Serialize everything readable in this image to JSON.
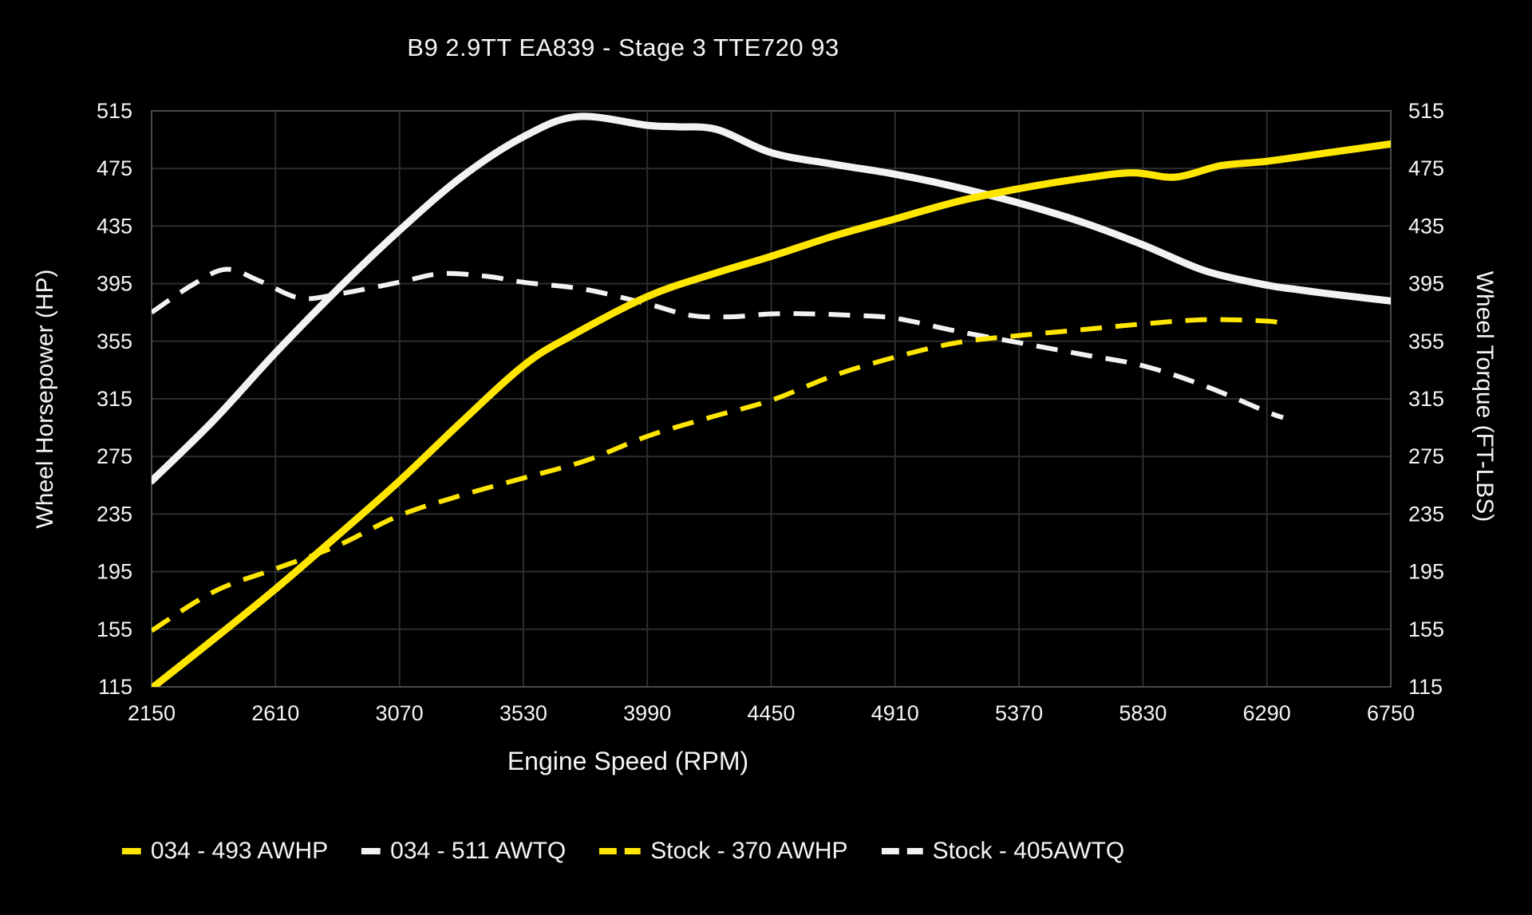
{
  "page": {
    "background": "#000000",
    "text_color": "#f5f5f5",
    "grid_color": "#2d2d2d",
    "border_color": "#4a4a4a"
  },
  "chart_data": {
    "type": "line",
    "title": "B9 2.9TT EA839 - Stage 3 TTE720 93",
    "xlabel": "Engine Speed (RPM)",
    "ylabel_left": "Wheel Horsepower (HP)",
    "ylabel_right": "Wheel Torque (FT-LBS)",
    "xlim": [
      2150,
      6750
    ],
    "ylim": [
      115,
      515
    ],
    "xticks": [
      2150,
      2610,
      3070,
      3530,
      3990,
      4450,
      4910,
      5370,
      5830,
      6290,
      6750
    ],
    "yticks": [
      115,
      155,
      195,
      235,
      275,
      315,
      355,
      395,
      435,
      475,
      515
    ],
    "grid": true,
    "legend_position": "bottom",
    "series": [
      {
        "name": "034 - 511 AWTQ",
        "color": "#f2f2f2",
        "style": "solid",
        "width": 9,
        "points": [
          [
            2150,
            258
          ],
          [
            2380,
            300
          ],
          [
            2610,
            347
          ],
          [
            2840,
            391
          ],
          [
            3070,
            432
          ],
          [
            3300,
            469
          ],
          [
            3530,
            497
          ],
          [
            3730,
            511
          ],
          [
            3990,
            505
          ],
          [
            4100,
            504
          ],
          [
            4250,
            502
          ],
          [
            4450,
            486
          ],
          [
            4680,
            478
          ],
          [
            4910,
            471
          ],
          [
            5140,
            462
          ],
          [
            5370,
            451
          ],
          [
            5600,
            438
          ],
          [
            5830,
            422
          ],
          [
            6060,
            404
          ],
          [
            6290,
            394
          ],
          [
            6400,
            391
          ],
          [
            6520,
            388
          ],
          [
            6750,
            383
          ]
        ]
      },
      {
        "name": "034 - 493 AWHP",
        "color": "#ffe600",
        "style": "solid",
        "width": 9,
        "points": [
          [
            2150,
            114
          ],
          [
            2380,
            148
          ],
          [
            2610,
            183
          ],
          [
            2840,
            220
          ],
          [
            3070,
            258
          ],
          [
            3300,
            299
          ],
          [
            3530,
            338
          ],
          [
            3700,
            358
          ],
          [
            3990,
            386
          ],
          [
            4220,
            401
          ],
          [
            4450,
            414
          ],
          [
            4680,
            428
          ],
          [
            4910,
            440
          ],
          [
            5140,
            452
          ],
          [
            5370,
            461
          ],
          [
            5600,
            468
          ],
          [
            5790,
            472
          ],
          [
            5950,
            469
          ],
          [
            6120,
            477
          ],
          [
            6290,
            480
          ],
          [
            6520,
            486
          ],
          [
            6750,
            492
          ]
        ]
      },
      {
        "name": "Stock - 370 AWHP",
        "color": "#ffe600",
        "style": "dashed",
        "width": 6,
        "points": [
          [
            2150,
            154
          ],
          [
            2380,
            181
          ],
          [
            2610,
            197
          ],
          [
            2840,
            213
          ],
          [
            3070,
            234
          ],
          [
            3300,
            248
          ],
          [
            3530,
            260
          ],
          [
            3760,
            272
          ],
          [
            3990,
            289
          ],
          [
            4220,
            302
          ],
          [
            4450,
            314
          ],
          [
            4680,
            331
          ],
          [
            4910,
            344
          ],
          [
            5140,
            354
          ],
          [
            5370,
            359
          ],
          [
            5600,
            363
          ],
          [
            5830,
            367
          ],
          [
            6060,
            370
          ],
          [
            6290,
            369
          ],
          [
            6350,
            367
          ]
        ]
      },
      {
        "name": "Stock - 405AWTQ",
        "color": "#f2f2f2",
        "style": "dashed",
        "width": 6,
        "points": [
          [
            2150,
            375
          ],
          [
            2300,
            394
          ],
          [
            2425,
            405
          ],
          [
            2550,
            397
          ],
          [
            2700,
            385
          ],
          [
            2850,
            388
          ],
          [
            3070,
            396
          ],
          [
            3225,
            402
          ],
          [
            3400,
            400
          ],
          [
            3530,
            396
          ],
          [
            3760,
            391
          ],
          [
            3990,
            381
          ],
          [
            4150,
            373
          ],
          [
            4300,
            372
          ],
          [
            4450,
            374
          ],
          [
            4600,
            374
          ],
          [
            4750,
            373
          ],
          [
            4910,
            371
          ],
          [
            5140,
            362
          ],
          [
            5370,
            354
          ],
          [
            5600,
            346
          ],
          [
            5830,
            338
          ],
          [
            6060,
            324
          ],
          [
            6290,
            306
          ],
          [
            6350,
            302
          ]
        ]
      }
    ],
    "legend_order": [
      "034 - 493 AWHP",
      "034 - 511 AWTQ",
      "Stock - 370 AWHP",
      "Stock - 405AWTQ"
    ]
  }
}
